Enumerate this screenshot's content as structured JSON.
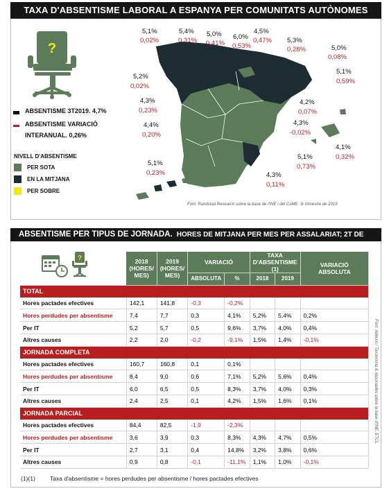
{
  "title": "TAXA D'ABSENTISME LABORAL A ESPANYA PER COMUNITATS AUTÒNOMES",
  "map": {
    "legend_black": "ABSENTISME 3T2019. 4,7%",
    "legend_red_line1": "ABSENTISME VARIACIÓ",
    "legend_red_line2": "INTERANUAL. 0,26%",
    "level_title": "NIVELL D'ABSENTISME",
    "levels": [
      {
        "label": "PER SOTA",
        "color": "#5c7b58"
      },
      {
        "label": "EN LA MITJANA",
        "color": "#1d2b33"
      },
      {
        "label": "PER SOBRE",
        "color": "#f2ea16"
      }
    ],
    "source": "Font: Randstad Research sobre la base de l'INE i del CuME. 3r trimestre de 2019",
    "regions": [
      {
        "rate": "5,1%",
        "change": "0,02%"
      },
      {
        "rate": "5,4%",
        "change": "0,31%"
      },
      {
        "rate": "5,0%",
        "change": "0,41%"
      },
      {
        "rate": "6,0%",
        "change": "0,53%"
      },
      {
        "rate": "4,5%",
        "change": "0,47%"
      },
      {
        "rate": "5,3%",
        "change": "0,28%"
      },
      {
        "rate": "5,0%",
        "change": "0,08%"
      },
      {
        "rate": "5,1%",
        "change": "0,59%"
      },
      {
        "rate": "5,2%",
        "change": "0,02%"
      },
      {
        "rate": "4,3%",
        "change": "0,23%"
      },
      {
        "rate": "4,2%",
        "change": "0,07%"
      },
      {
        "rate": "4,4%",
        "change": "0,20%"
      },
      {
        "rate": "4,3%",
        "change": "-0,02%"
      },
      {
        "rate": "4,1%",
        "change": "0,32%"
      },
      {
        "rate": "5,1%",
        "change": "0,73%"
      },
      {
        "rate": "5,1%",
        "change": "0,23%"
      },
      {
        "rate": "4,3%",
        "change": "0,11%"
      }
    ]
  },
  "table_title": "ABSENTISME PER TIPUS DE JORNADA.",
  "table_subtitle": "HORES DE MITJANA PER MES PER ASSALARIAT; 2T DE CADA ANY",
  "table": {
    "col_2018": [
      "2018",
      "(HORES/",
      "MES)"
    ],
    "col_2019": [
      "2019",
      "(HORES/",
      "MES)"
    ],
    "col_variacio": "VARIACIÓ",
    "col_absoluta": "ABSOLUTA",
    "col_pct": "%",
    "col_taxa": [
      "TAXA",
      "D'ABSENTISME",
      "(1)"
    ],
    "col_taxa_2018": "2018",
    "col_taxa_2019": "2019",
    "col_var_abs": [
      "VARIACIÓ",
      "ABSOLUTA"
    ],
    "sections": [
      {
        "name": "TOTAL",
        "rows": [
          {
            "label": "Hores pactades efectives",
            "y2018": "142,1",
            "y2019": "141,8",
            "abs": "-0,3",
            "pct": "-0,2%",
            "t2018": "",
            "t2019": "",
            "var": ""
          },
          {
            "label": "Hores perdudes per absentisme",
            "y2018": "7,4",
            "y2019": "7,7",
            "abs": "0,3",
            "pct": "4,1%",
            "t2018": "5,2%",
            "t2019": "5,4%",
            "var": "0,2%"
          },
          {
            "label": "Per IT",
            "y2018": "5,2",
            "y2019": "5,7",
            "abs": "0,5",
            "pct": "9,6%",
            "t2018": "3,7%",
            "t2019": "4,0%",
            "var": "0,4%"
          },
          {
            "label": "Altres causes",
            "y2018": "2,2",
            "y2019": "2,0",
            "abs": "-0,2",
            "pct": "-9,1%",
            "t2018": "1,5%",
            "t2019": "1,4%",
            "var": "-0,1%"
          }
        ]
      },
      {
        "name": "JORNADA COMPLETA",
        "rows": [
          {
            "label": "Hores pactades efectives",
            "y2018": "160,7",
            "y2019": "160,8",
            "abs": "0,1",
            "pct": "0,1%",
            "t2018": "",
            "t2019": "",
            "var": ""
          },
          {
            "label": "Hores perdudes per absentisme",
            "y2018": "8,4",
            "y2019": "9,0",
            "abs": "0,6",
            "pct": "7,1%",
            "t2018": "5,2%",
            "t2019": "5,6%",
            "var": "0,4%"
          },
          {
            "label": "Per IT",
            "y2018": "6,0",
            "y2019": "6,5",
            "abs": "0,5",
            "pct": "8,3%",
            "t2018": "3,7%",
            "t2019": "4,0%",
            "var": "0,3%"
          },
          {
            "label": "Altres causes",
            "y2018": "2,4",
            "y2019": "2,5",
            "abs": "0,1",
            "pct": "4,2%",
            "t2018": "1,5%",
            "t2019": "1,6%",
            "var": "0,1%"
          }
        ]
      },
      {
        "name": "JORNADA PARCIAL",
        "rows": [
          {
            "label": "Hores pactades efectives",
            "y2018": "84,4",
            "y2019": "82,5",
            "abs": "-1,9",
            "pct": "-2,3%",
            "t2018": "",
            "t2019": "",
            "var": ""
          },
          {
            "label": "Hores perdudes per absentisme",
            "y2018": "3,6",
            "y2019": "3,9",
            "abs": "0,3",
            "pct": "8,3%",
            "t2018": "4,3%",
            "t2019": "4,7%",
            "var": "0,5%"
          },
          {
            "label": "Per IT",
            "y2018": "2,7",
            "y2019": "3,1",
            "abs": "0,4",
            "pct": "14,8%",
            "t2018": "3,2%",
            "t2019": "3,8%",
            "var": "0,6%"
          },
          {
            "label": "Altres causes",
            "y2018": "0,9",
            "y2019": "0,8",
            "abs": "-0,1",
            "pct": "-11,1%",
            "t2018": "1,1%",
            "t2019": "1,0%",
            "var": "-0,1%"
          }
        ]
      }
    ],
    "footnote_mark": "(1)(1)",
    "footnote": "Taxa d'absentisme = hores perdudes per absentisme / hores pactades efectives",
    "source": "Font: Adecco / Taxonomia & Associades sobre la base d'INE, ETCL"
  },
  "chart_data": {
    "type": "table",
    "title": "ABSENTISME PER TIPUS DE JORNADA.",
    "subtitle": "HORES DE MITJANA PER MES PER ASSALARIAT; 2T DE CADA ANY",
    "columns": [
      "2018 (HORES/MES)",
      "2019 (HORES/MES)",
      "VARIACIÓ ABSOLUTA",
      "VARIACIÓ %",
      "TAXA D'ABSENTISME 2018",
      "TAXA D'ABSENTISME 2019",
      "VARIACIÓ ABSOLUTA"
    ],
    "sections": [
      "TOTAL",
      "JORNADA COMPLETA",
      "JORNADA PARCIAL"
    ]
  }
}
